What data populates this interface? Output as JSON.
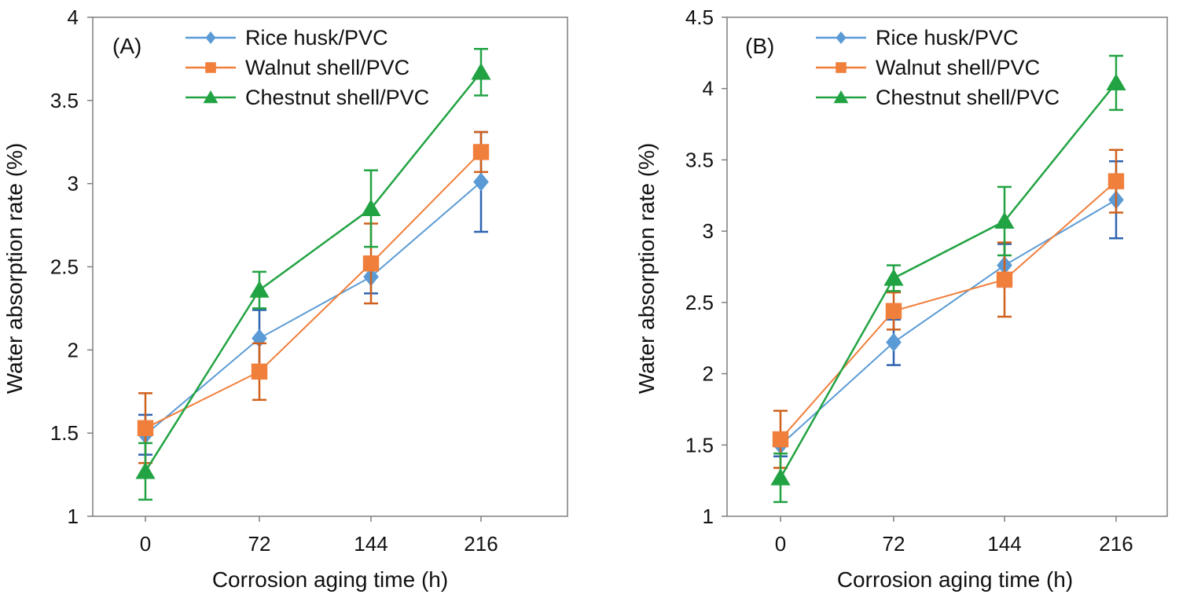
{
  "chart_data": [
    {
      "type": "line",
      "panel_label": "(A)",
      "xlabel": "Corrosion aging time  (h)",
      "ylabel": "Water absorption rate (%)",
      "categories": [
        "0",
        "72",
        "144",
        "216"
      ],
      "ylim": [
        1,
        4
      ],
      "yticks": [
        1,
        1.5,
        2,
        2.5,
        3,
        3.5,
        4
      ],
      "ytick_labels": [
        "1",
        "1.5",
        "2",
        "2.5",
        "3",
        "3.5",
        "4"
      ],
      "grid": false,
      "legend_position": "top-left",
      "series": [
        {
          "name": "Rice husk/PVC",
          "color": "#5b9bd5",
          "err_color": "#2e63b0",
          "marker": "diamond",
          "values": [
            1.49,
            2.07,
            2.44,
            3.01
          ],
          "errors": [
            0.12,
            0.17,
            0.1,
            0.3
          ]
        },
        {
          "name": "Walnut shell/PVC",
          "color": "#f07f3c",
          "err_color": "#d0601c",
          "marker": "square",
          "values": [
            1.53,
            1.87,
            2.52,
            3.19
          ],
          "errors": [
            0.21,
            0.17,
            0.24,
            0.12
          ]
        },
        {
          "name": "Chestnut shell/PVC",
          "color": "#22a343",
          "err_color": "#22a343",
          "marker": "triangle",
          "values": [
            1.27,
            2.36,
            2.85,
            3.67
          ],
          "errors": [
            0.17,
            0.11,
            0.23,
            0.14
          ]
        }
      ]
    },
    {
      "type": "line",
      "panel_label": "(B)",
      "xlabel": "Corrosion aging time  (h)",
      "ylabel": "Water absorption rate (%)",
      "categories": [
        "0",
        "72",
        "144",
        "216"
      ],
      "ylim": [
        1,
        4.5
      ],
      "yticks": [
        1,
        1.5,
        2,
        2.5,
        3,
        3.5,
        4,
        4.5
      ],
      "ytick_labels": [
        "1",
        "1.5",
        "2",
        "2.5",
        "3",
        "3.5",
        "4",
        "4.5"
      ],
      "grid": false,
      "legend_position": "top-left",
      "series": [
        {
          "name": "Rice husk/PVC",
          "color": "#5b9bd5",
          "err_color": "#2e63b0",
          "marker": "diamond",
          "values": [
            1.5,
            2.22,
            2.76,
            3.22
          ],
          "errors": [
            0.08,
            0.16,
            0.15,
            0.27
          ]
        },
        {
          "name": "Walnut shell/PVC",
          "color": "#f07f3c",
          "err_color": "#d0601c",
          "marker": "square",
          "values": [
            1.54,
            2.44,
            2.66,
            3.35
          ],
          "errors": [
            0.2,
            0.13,
            0.26,
            0.22
          ]
        },
        {
          "name": "Chestnut shell/PVC",
          "color": "#22a343",
          "err_color": "#22a343",
          "marker": "triangle",
          "values": [
            1.27,
            2.67,
            3.07,
            4.04
          ],
          "errors": [
            0.17,
            0.09,
            0.24,
            0.19
          ]
        }
      ]
    }
  ]
}
